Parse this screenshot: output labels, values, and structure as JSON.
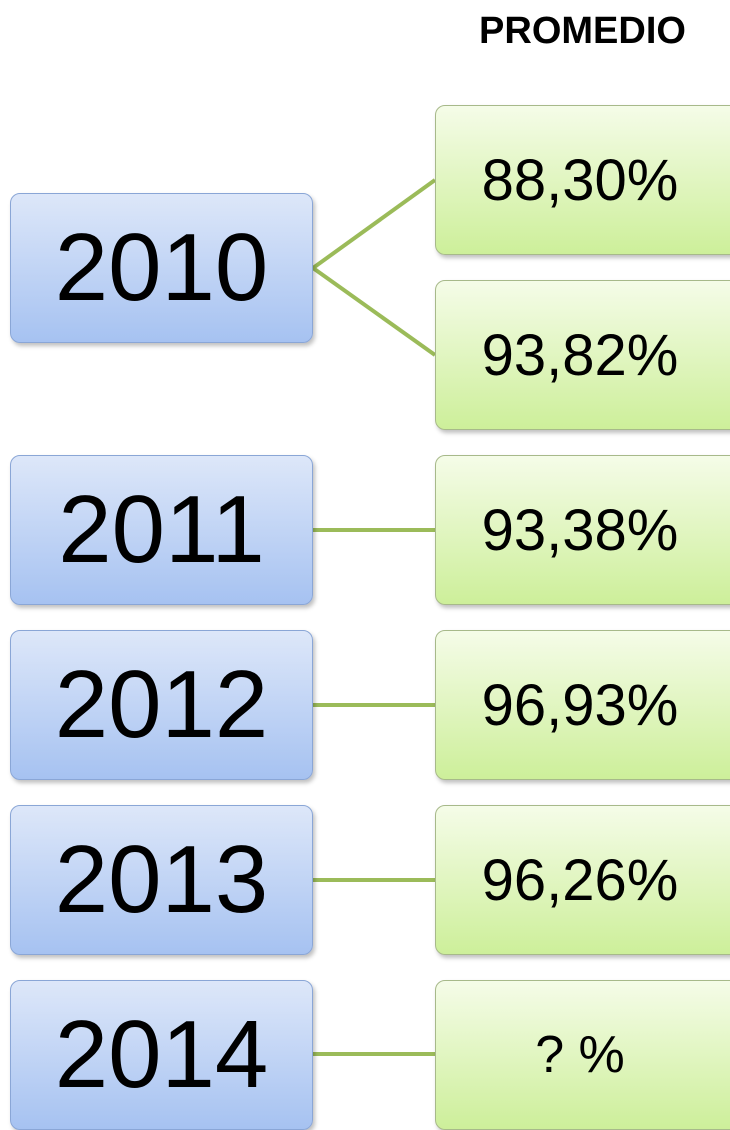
{
  "header": {
    "title": "PROMEDIO"
  },
  "nodes": [
    {
      "label": "2010",
      "children": [
        "88,30%",
        "93,82%"
      ]
    },
    {
      "label": "2011",
      "children": [
        "93,38%"
      ]
    },
    {
      "label": "2012",
      "children": [
        "96,93%"
      ]
    },
    {
      "label": "2013",
      "children": [
        "96,26%"
      ]
    },
    {
      "label": "2014",
      "children": [
        "? %"
      ]
    }
  ]
}
